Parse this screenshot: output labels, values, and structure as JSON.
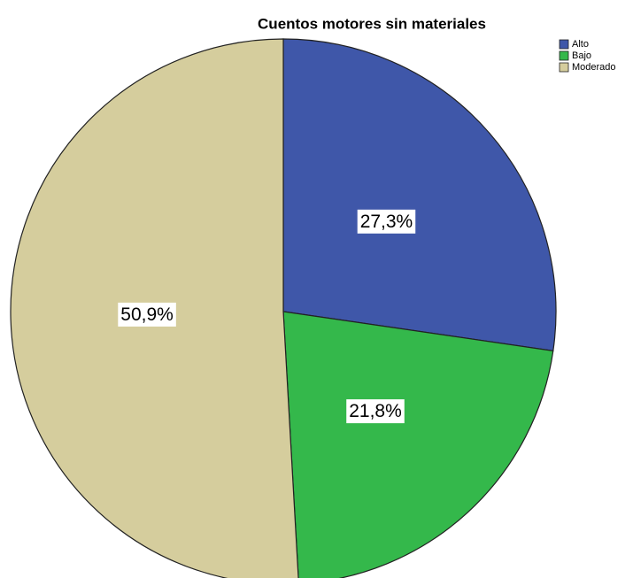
{
  "chart_data": {
    "type": "pie",
    "title": "Cuentos motores sin materiales",
    "categories": [
      "Alto",
      "Bajo",
      "Moderado"
    ],
    "values": [
      27.3,
      21.8,
      50.9
    ],
    "value_labels": [
      "27,3%",
      "21,8%",
      "50,9%"
    ],
    "colors": [
      "#3f57a9",
      "#34b84b",
      "#d5cd9d"
    ],
    "legend": "top-right"
  }
}
